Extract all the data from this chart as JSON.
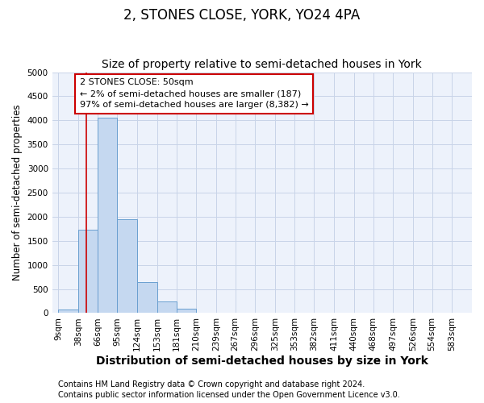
{
  "title": "2, STONES CLOSE, YORK, YO24 4PA",
  "subtitle": "Size of property relative to semi-detached houses in York",
  "xlabel": "Distribution of semi-detached houses by size in York",
  "ylabel": "Number of semi-detached properties",
  "footer_line1": "Contains HM Land Registry data © Crown copyright and database right 2024.",
  "footer_line2": "Contains public sector information licensed under the Open Government Licence v3.0.",
  "annotation_title": "2 STONES CLOSE: 50sqm",
  "annotation_line1": "← 2% of semi-detached houses are smaller (187)",
  "annotation_line2": "97% of semi-detached houses are larger (8,382) →",
  "property_size": 50,
  "bar_left_edges": [
    9,
    38,
    66,
    95,
    124,
    153,
    181,
    210,
    239,
    267,
    296,
    325,
    353,
    382,
    411,
    440,
    468,
    497,
    526,
    554
  ],
  "bar_heights": [
    75,
    1725,
    4050,
    1950,
    650,
    240,
    90,
    0,
    0,
    0,
    0,
    0,
    0,
    0,
    0,
    0,
    0,
    0,
    0,
    0
  ],
  "bar_widths": [
    29,
    28,
    29,
    29,
    29,
    28,
    29,
    29,
    28,
    29,
    29,
    28,
    29,
    29,
    29,
    28,
    29,
    29,
    28,
    29
  ],
  "bar_color": "#c5d8f0",
  "bar_edge_color": "#6a9fd0",
  "vline_color": "#cc0000",
  "vline_x": 50,
  "ylim": [
    0,
    5000
  ],
  "yticks": [
    0,
    500,
    1000,
    1500,
    2000,
    2500,
    3000,
    3500,
    4000,
    4500,
    5000
  ],
  "xlim_left": 0,
  "xlim_right": 612,
  "xtick_labels": [
    "9sqm",
    "38sqm",
    "66sqm",
    "95sqm",
    "124sqm",
    "153sqm",
    "181sqm",
    "210sqm",
    "239sqm",
    "267sqm",
    "296sqm",
    "325sqm",
    "353sqm",
    "382sqm",
    "411sqm",
    "440sqm",
    "468sqm",
    "497sqm",
    "526sqm",
    "554sqm",
    "583sqm"
  ],
  "xtick_positions": [
    9,
    38,
    66,
    95,
    124,
    153,
    181,
    210,
    239,
    267,
    296,
    325,
    353,
    382,
    411,
    440,
    468,
    497,
    526,
    554,
    583
  ],
  "grid_color": "#c8d4e8",
  "background_color": "#edf2fb",
  "annotation_box_facecolor": "white",
  "annotation_box_edgecolor": "#cc0000",
  "title_fontsize": 12,
  "subtitle_fontsize": 10,
  "xlabel_fontsize": 10,
  "ylabel_fontsize": 8.5,
  "annotation_fontsize": 8,
  "tick_fontsize": 7.5,
  "footer_fontsize": 7
}
